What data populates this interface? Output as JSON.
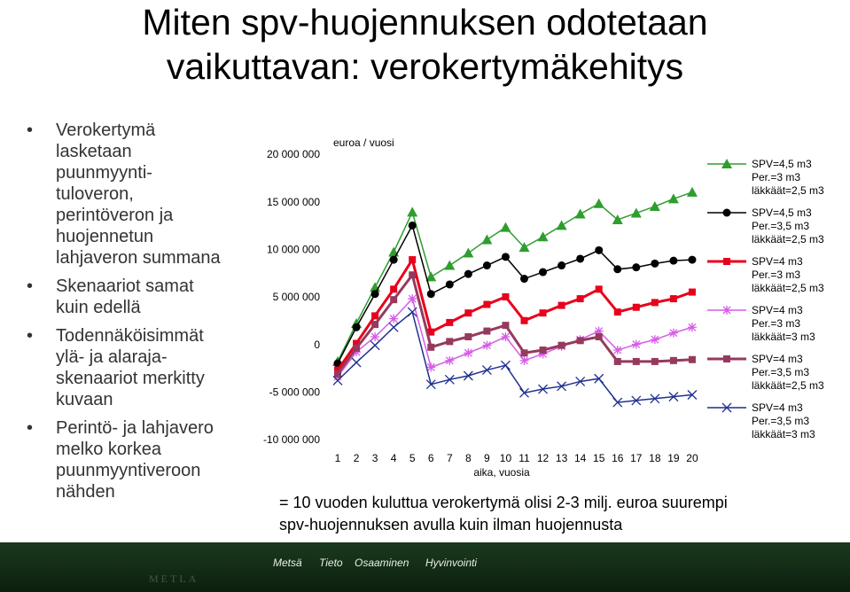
{
  "title": "Miten spv-huojennuksen odotetaan\nvaikuttavan: verokertymäkehitys",
  "bullets": [
    "Verokertymä\nlasketaan\npuunmyynti-\ntuloveron,\nperintöveron ja\nhuojennetun\nlahjaveron summana",
    "Skenaariot samat\nkuin edellä",
    "Todennäköisimmät\nylä- ja alaraja-\nskenaariot merkitty\nkuvaan",
    "Perintö- ja lahjavero\nmelko korkea\npuunmyyntiveroon\nnähden"
  ],
  "chart_data": {
    "type": "line",
    "y_label": "euroa / vuosi",
    "x_label": "aika, vuosia",
    "categories": [
      "1",
      "2",
      "3",
      "4",
      "5",
      "6",
      "7",
      "8",
      "9",
      "10",
      "11",
      "12",
      "13",
      "14",
      "15",
      "16",
      "17",
      "18",
      "19",
      "20"
    ],
    "ylim": [
      -10000000,
      20000000
    ],
    "yticks": [
      {
        "value": 20000000,
        "label": "20 000 000"
      },
      {
        "value": 15000000,
        "label": "15 000 000"
      },
      {
        "value": 10000000,
        "label": "10 000 000"
      },
      {
        "value": 5000000,
        "label": "5 000 000"
      },
      0,
      {
        "value": -5000000,
        "label": "-5 000 000"
      },
      {
        "value": -10000000,
        "label": "-10 000 000"
      }
    ],
    "grid": false,
    "legend": "right",
    "series": [
      {
        "name": "SPV=4,5 m3\nPer.=3 m3\nläkkäät=2,5 m3",
        "color": "#2e9e2e",
        "marker": "triangle",
        "line_width": 1.5,
        "values": [
          -1700000,
          2300000,
          6100000,
          9800000,
          14000000,
          7200000,
          8400000,
          9700000,
          11100000,
          12400000,
          10300000,
          11400000,
          12600000,
          13800000,
          14900000,
          13200000,
          13900000,
          14600000,
          15400000,
          16100000
        ]
      },
      {
        "name": "SPV=4,5 m3\nPer.=3,5 m3\nläkkäät=2,5 m3",
        "color": "#000000",
        "marker": "circle",
        "line_width": 1.5,
        "values": [
          -1900000,
          1900000,
          5400000,
          9000000,
          12600000,
          5400000,
          6400000,
          7500000,
          8400000,
          9300000,
          7000000,
          7700000,
          8400000,
          9100000,
          10000000,
          8000000,
          8200000,
          8600000,
          8900000,
          9000000
        ]
      },
      {
        "name": "SPV=4 m3\nPer.=3 m3\nläkkäät=2,5 m3",
        "color": "#e8001c",
        "marker": "square",
        "line_width": 3,
        "values": [
          -2600000,
          200000,
          3100000,
          5900000,
          9000000,
          1400000,
          2400000,
          3400000,
          4300000,
          5100000,
          2600000,
          3400000,
          4200000,
          4900000,
          5900000,
          3500000,
          4000000,
          4500000,
          4900000,
          5600000
        ]
      },
      {
        "name": "SPV=4 m3\nPer.=3 m3\nläkkäät=3 m3",
        "color": "#d65ce6",
        "marker": "star",
        "line_width": 1.5,
        "values": [
          -3300000,
          -700000,
          900000,
          2800000,
          4900000,
          -2300000,
          -1600000,
          -800000,
          0,
          900000,
          -1600000,
          -900000,
          -100000,
          600000,
          1500000,
          -500000,
          100000,
          600000,
          1300000,
          1900000
        ]
      },
      {
        "name": "SPV=4 m3\nPer.=3,5 m3\nläkkäät=2,5 m3",
        "color": "#953a5e",
        "marker": "square",
        "line_width": 3,
        "values": [
          -3000000,
          -300000,
          2200000,
          4800000,
          7400000,
          -200000,
          400000,
          900000,
          1500000,
          2100000,
          -800000,
          -500000,
          0,
          500000,
          900000,
          -1700000,
          -1700000,
          -1700000,
          -1600000,
          -1500000
        ]
      },
      {
        "name": "SPV=4 m3\nPer.=3,5 m3\nläkkäät=3 m3",
        "color": "#1f2f8f",
        "marker": "x",
        "line_width": 1.5,
        "values": [
          -3700000,
          -1800000,
          0,
          1900000,
          3500000,
          -4100000,
          -3600000,
          -3200000,
          -2600000,
          -2100000,
          -5000000,
          -4600000,
          -4300000,
          -3800000,
          -3500000,
          -6000000,
          -5800000,
          -5600000,
          -5400000,
          -5200000
        ]
      }
    ]
  },
  "note": "= 10 vuoden kuluttua verokertymä olisi 2-3 milj. euroa suurempi\nspv-huojennuksen avulla kuin ilman huojennusta",
  "footer": {
    "logo": "METLA",
    "items": [
      "Metsä",
      "Tieto",
      "Osaaminen",
      "Hyvinvointi"
    ]
  }
}
